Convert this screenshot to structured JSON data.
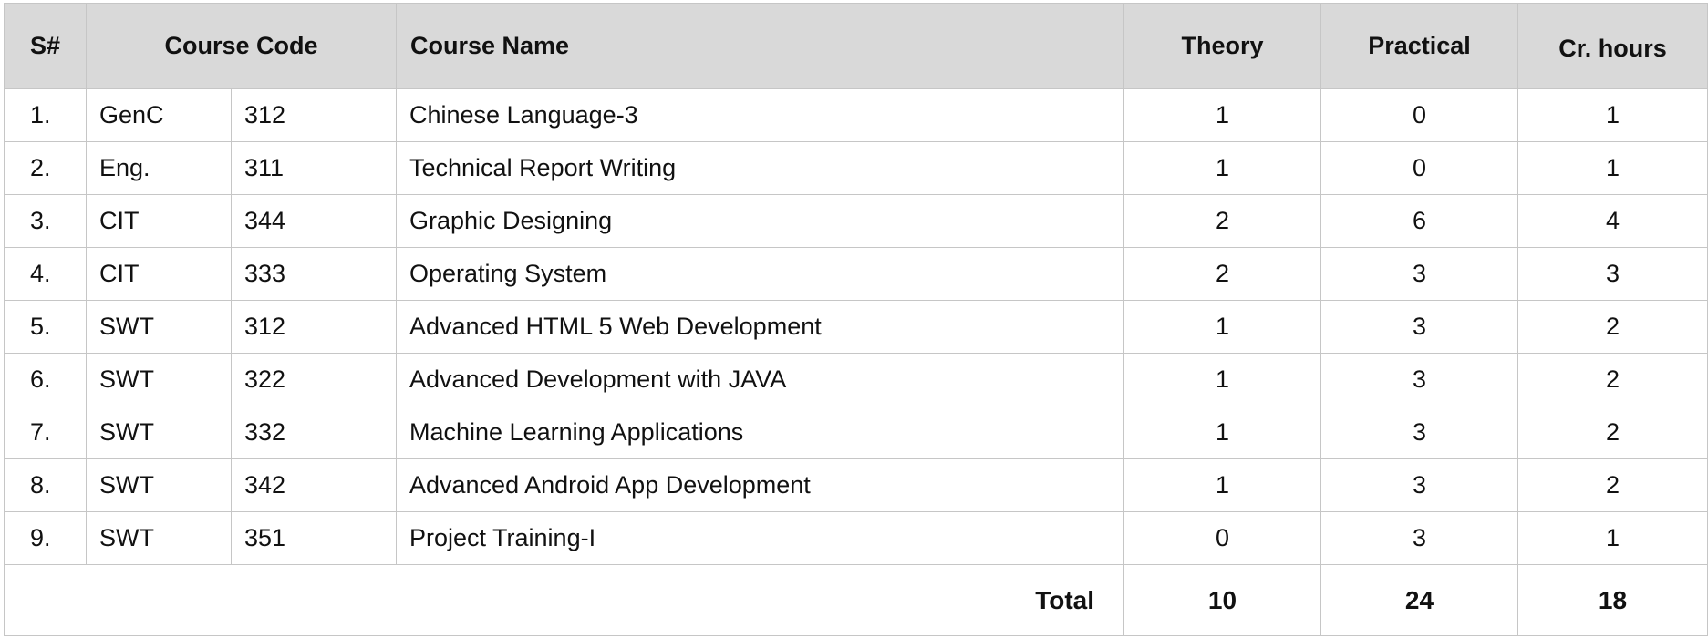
{
  "headers": {
    "sn": "S#",
    "course_code": "Course Code",
    "course_name": "Course Name",
    "theory": "Theory",
    "practical": "Practical",
    "cr_hours": "Cr. hours"
  },
  "rows": [
    {
      "sn": "1.",
      "dept": "GenC",
      "code": "312",
      "name": "Chinese Language-3",
      "theory": "1",
      "practical": "0",
      "cr": "1"
    },
    {
      "sn": "2.",
      "dept": "Eng.",
      "code": "311",
      "name": "Technical Report Writing",
      "theory": "1",
      "practical": "0",
      "cr": "1"
    },
    {
      "sn": "3.",
      "dept": "CIT",
      "code": "344",
      "name": "Graphic Designing",
      "theory": "2",
      "practical": "6",
      "cr": "4"
    },
    {
      "sn": "4.",
      "dept": "CIT",
      "code": "333",
      "name": "Operating System",
      "theory": "2",
      "practical": "3",
      "cr": "3"
    },
    {
      "sn": "5.",
      "dept": "SWT",
      "code": "312",
      "name": "Advanced HTML 5 Web Development",
      "theory": "1",
      "practical": "3",
      "cr": "2"
    },
    {
      "sn": "6.",
      "dept": "SWT",
      "code": "322",
      "name": "Advanced Development with JAVA",
      "theory": "1",
      "practical": "3",
      "cr": "2"
    },
    {
      "sn": "7.",
      "dept": "SWT",
      "code": "332",
      "name": "Machine Learning Applications",
      "theory": "1",
      "practical": "3",
      "cr": "2"
    },
    {
      "sn": "8.",
      "dept": "SWT",
      "code": "342",
      "name": "Advanced Android App Development",
      "theory": "1",
      "practical": "3",
      "cr": "2"
    },
    {
      "sn": "9.",
      "dept": "SWT",
      "code": "351",
      "name": "Project Training-I",
      "theory": "0",
      "practical": "3",
      "cr": "1"
    }
  ],
  "total": {
    "label": "Total",
    "theory": "10",
    "practical": "24",
    "cr": "18"
  }
}
